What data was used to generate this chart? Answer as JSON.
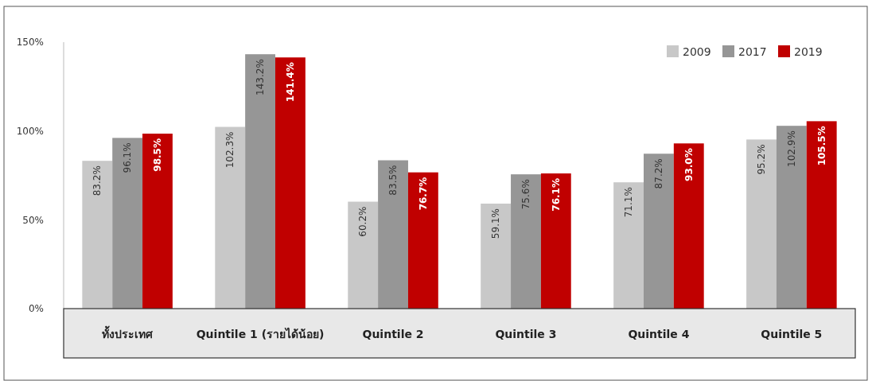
{
  "chart_data": {
    "type": "bar",
    "categories": [
      "ทั้งประเทศ",
      "Quintile 1 (รายได้น้อย)",
      "Quintile 2",
      "Quintile 3",
      "Quintile 4",
      "Quintile 5"
    ],
    "series": [
      {
        "name": "2009",
        "color": "#c8c8c8",
        "values": [
          83.2,
          102.3,
          60.2,
          59.1,
          71.1,
          95.2
        ]
      },
      {
        "name": "2017",
        "color": "#969696",
        "values": [
          96.1,
          143.2,
          83.5,
          75.6,
          87.2,
          102.9
        ]
      },
      {
        "name": "2019",
        "color": "#c00000",
        "values": [
          98.5,
          141.4,
          76.7,
          76.1,
          93.0,
          105.5
        ]
      }
    ],
    "value_labels": [
      [
        "83.2%",
        "102.3%",
        "60.2%",
        "59.1%",
        "71.1%",
        "95.2%"
      ],
      [
        "96.1%",
        "143.2%",
        "83.5%",
        "75.6%",
        "87.2%",
        "102.9%"
      ],
      [
        "98.5%",
        "141.4%",
        "76.7%",
        "76.1%",
        "93.0%",
        "105.5%"
      ]
    ],
    "ylim": [
      0,
      150
    ],
    "yticks": [
      {
        "value": 0,
        "label": "0%"
      },
      {
        "value": 50,
        "label": "50%"
      },
      {
        "value": 100,
        "label": "100%"
      },
      {
        "value": 150,
        "label": "150%"
      }
    ],
    "grid": false,
    "legend": "top right"
  }
}
